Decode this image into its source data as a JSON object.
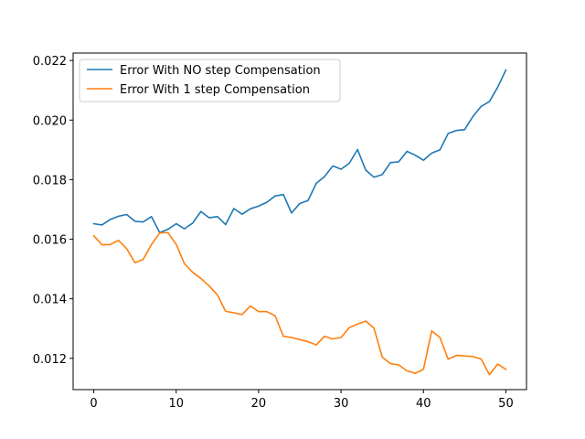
{
  "chart_data": {
    "type": "line",
    "title": "",
    "xlabel": "",
    "ylabel": "",
    "xlim": [
      -2.5,
      52.5
    ],
    "ylim": [
      0.01095,
      0.02225
    ],
    "x_ticks": [
      0,
      10,
      20,
      30,
      40,
      50
    ],
    "x_tick_labels": [
      "0",
      "10",
      "20",
      "30",
      "40",
      "50"
    ],
    "y_ticks": [
      0.012,
      0.014,
      0.016,
      0.018,
      0.02,
      0.022
    ],
    "y_tick_labels": [
      "0.012",
      "0.014",
      "0.016",
      "0.018",
      "0.020",
      "0.022"
    ],
    "grid": false,
    "legend_position": "top-left",
    "x": [
      0,
      1,
      2,
      3,
      4,
      5,
      6,
      7,
      8,
      9,
      10,
      11,
      12,
      13,
      14,
      15,
      16,
      17,
      18,
      19,
      20,
      21,
      22,
      23,
      24,
      25,
      26,
      27,
      28,
      29,
      30,
      31,
      32,
      33,
      34,
      35,
      36,
      37,
      38,
      39,
      40,
      41,
      42,
      43,
      44,
      45,
      46,
      47,
      48,
      49,
      50
    ],
    "series": [
      {
        "name": "Error With NO step Compensation",
        "color": "#1f77b4",
        "values": [
          0.01652,
          0.01648,
          0.01666,
          0.01677,
          0.01683,
          0.0166,
          0.01658,
          0.01676,
          0.01622,
          0.01633,
          0.01652,
          0.01635,
          0.01654,
          0.01693,
          0.01672,
          0.01676,
          0.01649,
          0.01703,
          0.01684,
          0.01702,
          0.01711,
          0.01724,
          0.01745,
          0.0175,
          0.01688,
          0.0172,
          0.0173,
          0.01788,
          0.0181,
          0.01846,
          0.01835,
          0.01855,
          0.01901,
          0.01832,
          0.01808,
          0.01817,
          0.01857,
          0.0186,
          0.01895,
          0.01882,
          0.01865,
          0.01889,
          0.019,
          0.01955,
          0.01965,
          0.01968,
          0.02012,
          0.02046,
          0.02062,
          0.0211,
          0.02168
        ]
      },
      {
        "name": "Error With 1 step Compensation",
        "color": "#ff7f0e",
        "values": [
          0.01612,
          0.01581,
          0.01582,
          0.01596,
          0.01568,
          0.01521,
          0.01532,
          0.01582,
          0.01621,
          0.01622,
          0.01583,
          0.01518,
          0.01489,
          0.01468,
          0.01443,
          0.01413,
          0.01358,
          0.01353,
          0.01347,
          0.01376,
          0.01357,
          0.01357,
          0.01343,
          0.01274,
          0.0127,
          0.01263,
          0.01256,
          0.01245,
          0.01274,
          0.01265,
          0.0127,
          0.01303,
          0.01315,
          0.01325,
          0.01301,
          0.01204,
          0.01182,
          0.01178,
          0.01158,
          0.0115,
          0.01163,
          0.01292,
          0.0127,
          0.01197,
          0.0121,
          0.01208,
          0.01206,
          0.01198,
          0.01145,
          0.01181,
          0.01163
        ]
      }
    ]
  }
}
